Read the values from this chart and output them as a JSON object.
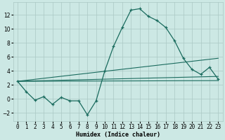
{
  "x": [
    0,
    1,
    2,
    3,
    4,
    5,
    6,
    7,
    8,
    9,
    10,
    11,
    12,
    13,
    14,
    15,
    16,
    17,
    18,
    19,
    20,
    21,
    22,
    23
  ],
  "line1": [
    2.5,
    1.0,
    -0.2,
    0.3,
    -0.8,
    0.2,
    -0.3,
    -0.3,
    -2.3,
    -0.3,
    4.0,
    7.5,
    10.2,
    12.7,
    12.9,
    11.8,
    11.2,
    10.2,
    8.3,
    5.8,
    4.2,
    3.5,
    4.5,
    2.8
  ],
  "trend_lines": [
    [
      [
        0,
        23
      ],
      [
        2.5,
        5.8
      ]
    ],
    [
      [
        0,
        23
      ],
      [
        2.5,
        3.2
      ]
    ],
    [
      [
        0,
        23
      ],
      [
        2.5,
        2.6
      ]
    ]
  ],
  "bg_color": "#cce8e4",
  "line_color": "#1a6b5e",
  "grid_color": "#aac8c4",
  "xlabel": "Humidex (Indice chaleur)",
  "xlim": [
    -0.5,
    23.5
  ],
  "ylim": [
    -3.2,
    13.8
  ],
  "yticks": [
    -2,
    0,
    2,
    4,
    6,
    8,
    10,
    12
  ],
  "xticks": [
    0,
    1,
    2,
    3,
    4,
    5,
    6,
    7,
    8,
    9,
    10,
    11,
    12,
    13,
    14,
    15,
    16,
    17,
    18,
    19,
    20,
    21,
    22,
    23
  ],
  "xtick_labels": [
    "0",
    "1",
    "2",
    "3",
    "4",
    "5",
    "6",
    "7",
    "8",
    "9",
    "10",
    "11",
    "12",
    "13",
    "14",
    "15",
    "16",
    "17",
    "18",
    "19",
    "20",
    "21",
    "22",
    "23"
  ]
}
